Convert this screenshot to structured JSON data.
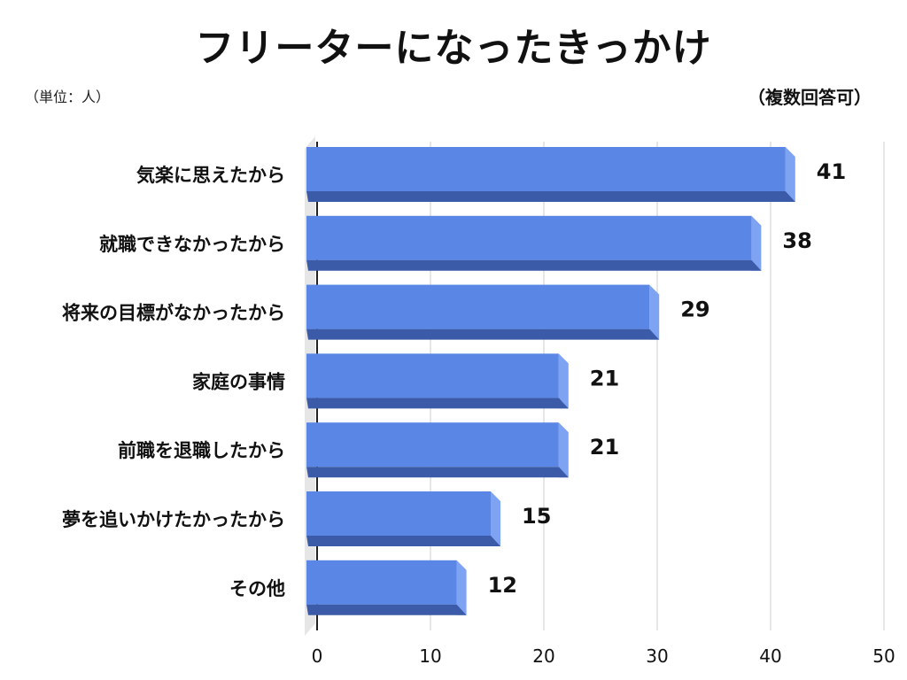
{
  "chart_data": {
    "type": "bar",
    "orientation": "horizontal",
    "title": "フリーターになったきっかけ",
    "unit_label": "（単位：人）",
    "note": "（複数回答可）",
    "categories": [
      "気楽に思えたから",
      "就職できなかったから",
      "将来の目標がなかったから",
      "家庭の事情",
      "前職を退職したから",
      "夢を追いかけたかったから",
      "その他"
    ],
    "values": [
      41,
      38,
      29,
      21,
      21,
      15,
      12
    ],
    "xlim": [
      0,
      50
    ],
    "xticks": [
      0,
      10,
      20,
      30,
      40,
      50
    ],
    "grid": true,
    "legend": "none",
    "colors": {
      "bar_face": "#5a86e6",
      "bar_top": "#6b95ee",
      "bar_bottom": "#3b5ba8",
      "bar_side": "#7ea3f2",
      "grid": "#cccccc",
      "floor": "#e6e6e6"
    }
  }
}
